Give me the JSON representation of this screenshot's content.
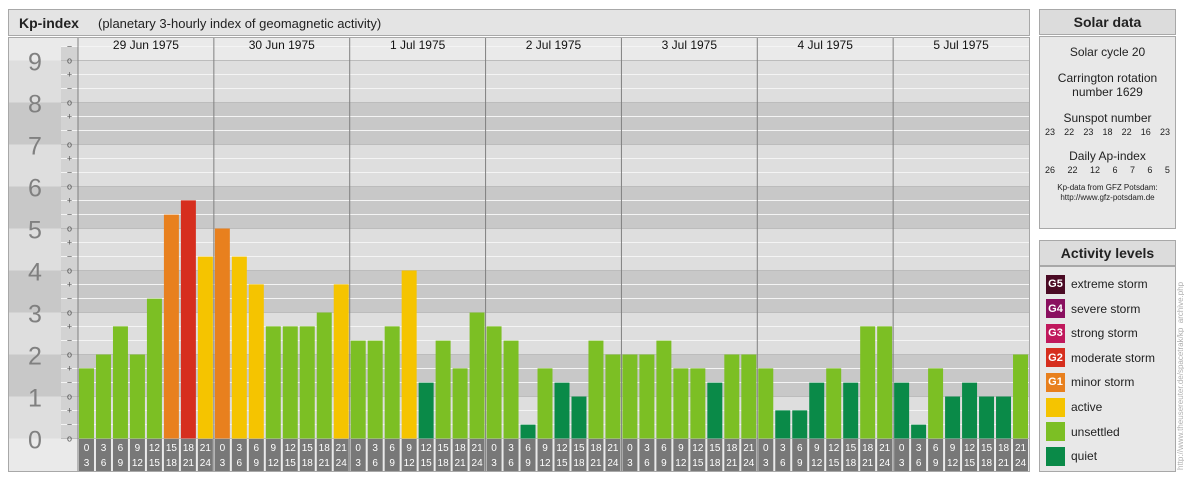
{
  "header": {
    "title": "Kp-index",
    "subtitle": "(planetary 3-hourly index of geomagnetic activity)"
  },
  "chart_data": {
    "type": "bar",
    "title": "Kp-index",
    "subtitle": "(planetary 3-hourly index of geomagnetic activity)",
    "ylim": [
      0,
      9
    ],
    "y_ticks": [
      "0",
      "1",
      "2",
      "3",
      "4",
      "5",
      "6",
      "7",
      "8",
      "9"
    ],
    "minor_ticks": [
      "o",
      "+",
      "−"
    ],
    "days": [
      "29 Jun 1975",
      "30 Jun 1975",
      "1 Jul 1975",
      "2 Jul 1975",
      "3 Jul 1975",
      "4 Jul 1975",
      "5 Jul 1975"
    ],
    "intervals": [
      [
        "0",
        "3"
      ],
      [
        "3",
        "6"
      ],
      [
        "6",
        "9"
      ],
      [
        "9",
        "12"
      ],
      [
        "12",
        "15"
      ],
      [
        "15",
        "18"
      ],
      [
        "18",
        "21"
      ],
      [
        "21",
        "24"
      ]
    ],
    "values": [
      1.67,
      2.0,
      2.67,
      2.0,
      3.33,
      5.33,
      5.67,
      4.33,
      5.0,
      4.33,
      3.67,
      2.67,
      2.67,
      2.67,
      3.0,
      3.67,
      2.33,
      2.33,
      2.67,
      4.0,
      1.33,
      2.33,
      1.67,
      3.0,
      2.67,
      2.33,
      0.33,
      1.67,
      1.33,
      1.0,
      2.33,
      2.0,
      2.0,
      2.0,
      2.33,
      1.67,
      1.67,
      1.33,
      2.0,
      2.0,
      1.67,
      0.67,
      0.67,
      1.33,
      1.67,
      1.33,
      2.67,
      2.67,
      1.33,
      0.33,
      1.67,
      1.0,
      1.33,
      1.0,
      1.0,
      2.0
    ]
  },
  "solar": {
    "title": "Solar data",
    "cycle": "Solar cycle 20",
    "carrington_1": "Carrington rotation",
    "carrington_2": "number 1629",
    "sunspot_label": "Sunspot number",
    "sunspot_values": [
      "23",
      "22",
      "23",
      "18",
      "22",
      "16",
      "23"
    ],
    "ap_label": "Daily Ap-index",
    "ap_values": [
      "26",
      "22",
      "12",
      "6",
      "7",
      "6",
      "5"
    ],
    "credit_1": "Kp-data from GFZ Potsdam:",
    "credit_2": "http://www.gfz-potsdam.de"
  },
  "activity": {
    "title": "Activity levels",
    "levels": [
      {
        "code": "G5",
        "label": "extreme storm",
        "color": "#4a0a24"
      },
      {
        "code": "G4",
        "label": "severe storm",
        "color": "#8a1060"
      },
      {
        "code": "G3",
        "label": "strong storm",
        "color": "#c0185c"
      },
      {
        "code": "G2",
        "label": "moderate storm",
        "color": "#d62e1e"
      },
      {
        "code": "G1",
        "label": "minor storm",
        "color": "#e8801e"
      },
      {
        "code": "",
        "label": "active",
        "color": "#f5c400"
      },
      {
        "code": "",
        "label": "unsettled",
        "color": "#7cbf24"
      },
      {
        "code": "",
        "label": "quiet",
        "color": "#0a8a48"
      }
    ]
  },
  "watermark": "http://www.theusereuter.de/spacetrak/kp_archive.php"
}
